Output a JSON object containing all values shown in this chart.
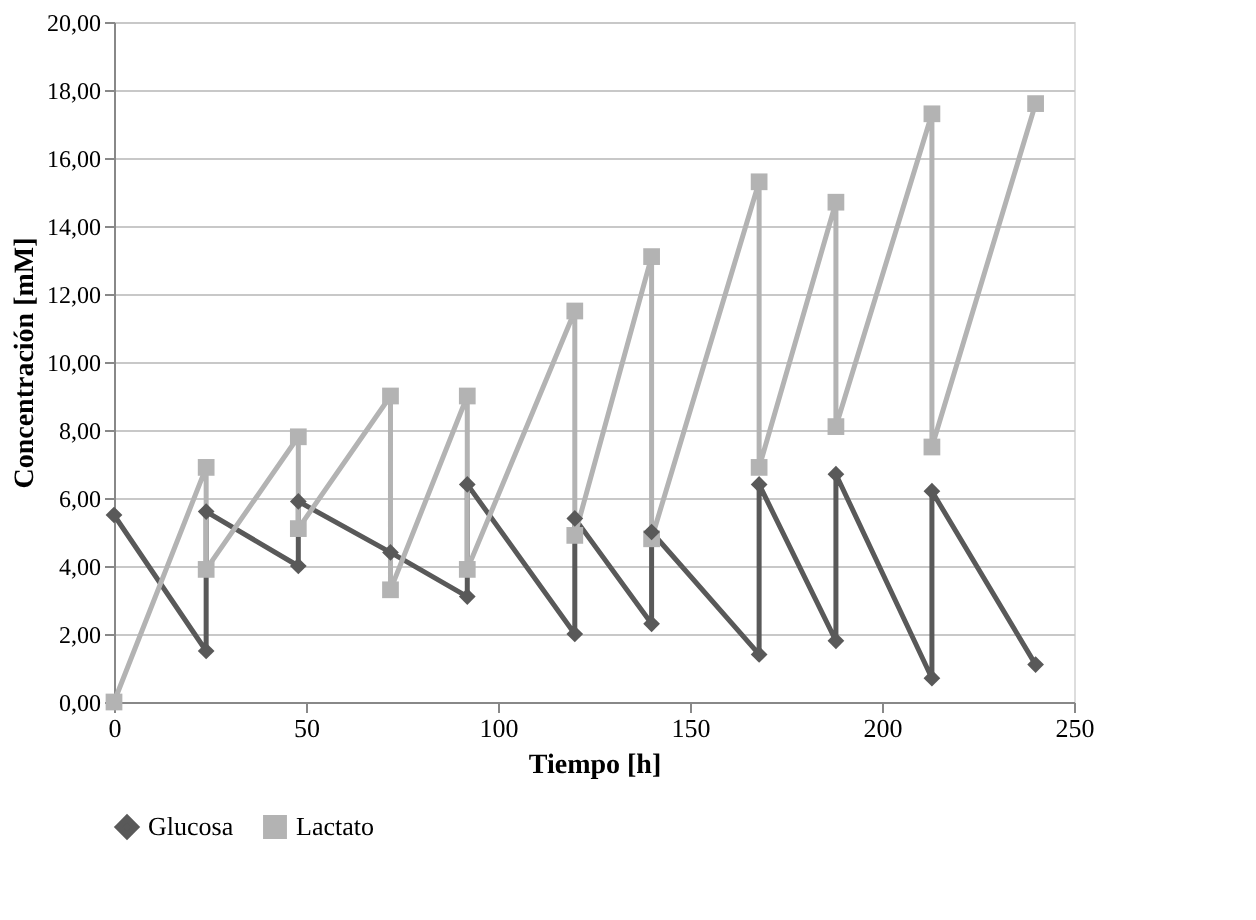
{
  "chart_data": {
    "type": "line",
    "xlabel": "Tiempo  [h]",
    "ylabel": "Concentración [mM]",
    "xlim": [
      0,
      250
    ],
    "xticks": [
      0,
      50,
      100,
      150,
      200,
      250
    ],
    "ylim": [
      0,
      20
    ],
    "yticks": [
      {
        "value": 0,
        "label": "0,00"
      },
      {
        "value": 2,
        "label": "2,00"
      },
      {
        "value": 4,
        "label": "4,00"
      },
      {
        "value": 6,
        "label": "6,00"
      },
      {
        "value": 8,
        "label": "8,00"
      },
      {
        "value": 10,
        "label": "10,00"
      },
      {
        "value": 12,
        "label": "12,00"
      },
      {
        "value": 14,
        "label": "14,00"
      },
      {
        "value": 16,
        "label": "16,00"
      },
      {
        "value": 18,
        "label": "18,00"
      },
      {
        "value": 20,
        "label": "20,00"
      }
    ],
    "grid": "y",
    "legend": "bottom",
    "line_style": "solid",
    "series": [
      {
        "name": "Glucosa",
        "color": "#595959",
        "marker": "diamond",
        "x": [
          0,
          24,
          24,
          48,
          48,
          72,
          92,
          92,
          120,
          120,
          140,
          140,
          168,
          168,
          188,
          188,
          213,
          213,
          240
        ],
        "values": [
          5.5,
          1.5,
          5.6,
          4.0,
          5.9,
          4.4,
          3.1,
          6.4,
          2.0,
          5.4,
          2.3,
          5.0,
          1.4,
          6.4,
          1.8,
          6.7,
          0.7,
          6.2,
          1.1
        ]
      },
      {
        "name": "Lactato",
        "color": "#b3b3b3",
        "marker": "square",
        "x": [
          0,
          24,
          24,
          48,
          48,
          72,
          72,
          92,
          92,
          120,
          120,
          140,
          140,
          168,
          168,
          188,
          188,
          213,
          213,
          240
        ],
        "values": [
          0,
          6.9,
          3.9,
          7.8,
          5.1,
          9.0,
          3.3,
          9.0,
          3.9,
          11.5,
          4.9,
          13.1,
          4.8,
          15.3,
          6.9,
          14.7,
          8.1,
          17.3,
          7.5,
          17.6
        ]
      }
    ]
  }
}
